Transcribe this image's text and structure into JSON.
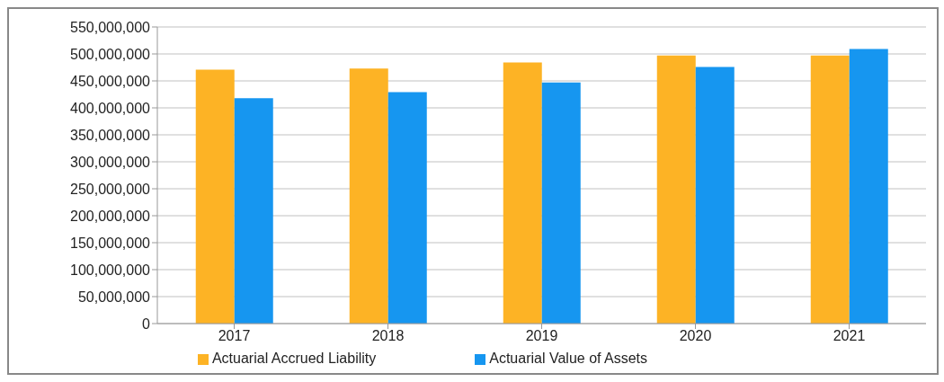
{
  "chart_data": {
    "type": "bar",
    "categories": [
      "2017",
      "2018",
      "2019",
      "2020",
      "2021"
    ],
    "series": [
      {
        "name": "Actuarial Accrued Liability",
        "color": "#fdb325",
        "values": [
          471000000,
          473000000,
          484000000,
          497000000,
          497000000
        ]
      },
      {
        "name": "Actuarial Value of Assets",
        "color": "#1696f0",
        "values": [
          418000000,
          429000000,
          447000000,
          476000000,
          509000000
        ]
      }
    ],
    "ylim": [
      0,
      550000000
    ],
    "yticks": [
      0,
      {
        "value": 50000000,
        "label": "50,000,000"
      },
      {
        "value": 100000000,
        "label": "100,000,000"
      },
      {
        "value": 150000000,
        "label": "150,000,000"
      },
      {
        "value": 200000000,
        "label": "200,000,000"
      },
      {
        "value": 250000000,
        "label": "250,000,000"
      },
      {
        "value": 300000000,
        "label": "300,000,000"
      },
      {
        "value": 350000000,
        "label": "350,000,000"
      },
      {
        "value": 400000000,
        "label": "400,000,000"
      },
      {
        "value": 450000000,
        "label": "450,000,000"
      },
      {
        "value": 500000000,
        "label": "500,000,000"
      },
      {
        "value": 550000000,
        "label": "550,000,000"
      }
    ],
    "grid": "y",
    "legend": "bottom"
  }
}
